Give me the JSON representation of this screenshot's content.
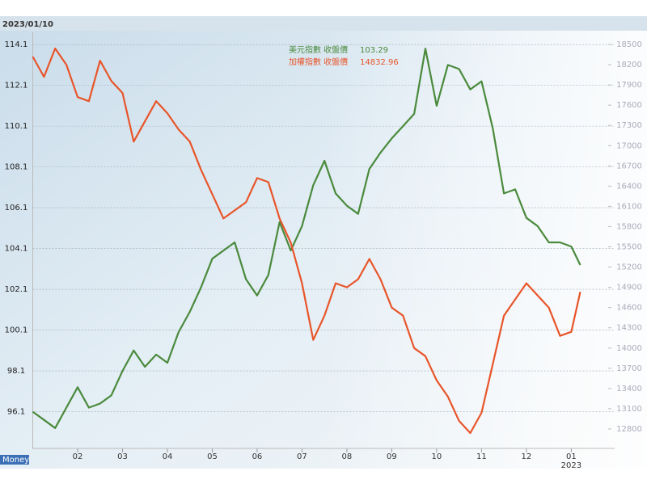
{
  "chart_data": {
    "type": "line",
    "title": "2023/01/10",
    "logo": "Money",
    "x": [
      1.0,
      1.25,
      1.5,
      1.75,
      2.0,
      2.25,
      2.5,
      2.75,
      3.0,
      3.25,
      3.5,
      3.75,
      4.0,
      4.25,
      4.5,
      4.75,
      5.0,
      5.25,
      5.5,
      5.75,
      6.0,
      6.25,
      6.5,
      6.75,
      7.0,
      7.25,
      7.5,
      7.75,
      8.0,
      8.25,
      8.5,
      8.75,
      9.0,
      9.25,
      9.5,
      9.75,
      10.0,
      10.25,
      10.5,
      10.75,
      11.0,
      11.25,
      11.5,
      11.75,
      12.0,
      12.25,
      12.5,
      12.75,
      13.0,
      13.2
    ],
    "xlim": [
      1.0,
      13.3
    ],
    "xticks": [
      {
        "value": 2,
        "label": "02"
      },
      {
        "value": 3,
        "label": "03"
      },
      {
        "value": 4,
        "label": "04"
      },
      {
        "value": 5,
        "label": "05"
      },
      {
        "value": 6,
        "label": "06"
      },
      {
        "value": 7,
        "label": "07"
      },
      {
        "value": 8,
        "label": "08"
      },
      {
        "value": 9,
        "label": "09"
      },
      10,
      11,
      12,
      {
        "value": 13,
        "label": "01"
      }
    ],
    "year_label": "2023",
    "ylim": [
      94.3,
      114.7
    ],
    "yticks": [
      96.1,
      98.1,
      100.1,
      102.1,
      104.1,
      106.1,
      108.1,
      110.1,
      112.1,
      114.1
    ],
    "y2lim": [
      12512,
      18680
    ],
    "y2ticks": [
      12800,
      13100,
      13400,
      13700,
      14000,
      14300,
      14600,
      14900,
      15200,
      15500,
      15800,
      16100,
      16400,
      16700,
      17000,
      17300,
      17600,
      17900,
      18200,
      18500
    ],
    "grid": true,
    "series": [
      {
        "name": "美元指數 收盤價",
        "last_label": "103.29",
        "color": "#4a8a3c",
        "values": [
          96.1,
          95.7,
          95.3,
          96.3,
          97.3,
          96.3,
          96.5,
          96.9,
          98.1,
          99.1,
          98.3,
          98.9,
          98.5,
          100.0,
          101.0,
          102.2,
          103.6,
          104.0,
          104.4,
          102.6,
          101.8,
          102.8,
          105.4,
          104.0,
          105.2,
          107.2,
          108.4,
          106.8,
          106.2,
          105.8,
          108.0,
          108.8,
          109.5,
          110.1,
          110.7,
          113.9,
          111.1,
          113.1,
          112.9,
          111.9,
          112.3,
          110.0,
          106.8,
          107.0,
          105.6,
          105.2,
          104.4,
          104.4,
          104.2,
          103.29
        ]
      },
      {
        "name": "加權指數 收盤價",
        "last_label": "14832.96",
        "color": "#e8552a",
        "axis": "y2",
        "values": [
          18320,
          18020,
          18440,
          18200,
          17720,
          17660,
          18260,
          17960,
          17780,
          17060,
          17360,
          17660,
          17480,
          17240,
          17060,
          16640,
          16280,
          15920,
          16040,
          16160,
          16520,
          16460,
          15920,
          15560,
          14960,
          14120,
          14480,
          14960,
          14900,
          15020,
          15320,
          15020,
          14600,
          14480,
          14000,
          13880,
          13520,
          13280,
          12920,
          12740,
          13040,
          13760,
          14480,
          14720,
          14960,
          14780,
          14600,
          14180,
          14240,
          14832.96
        ]
      }
    ]
  }
}
